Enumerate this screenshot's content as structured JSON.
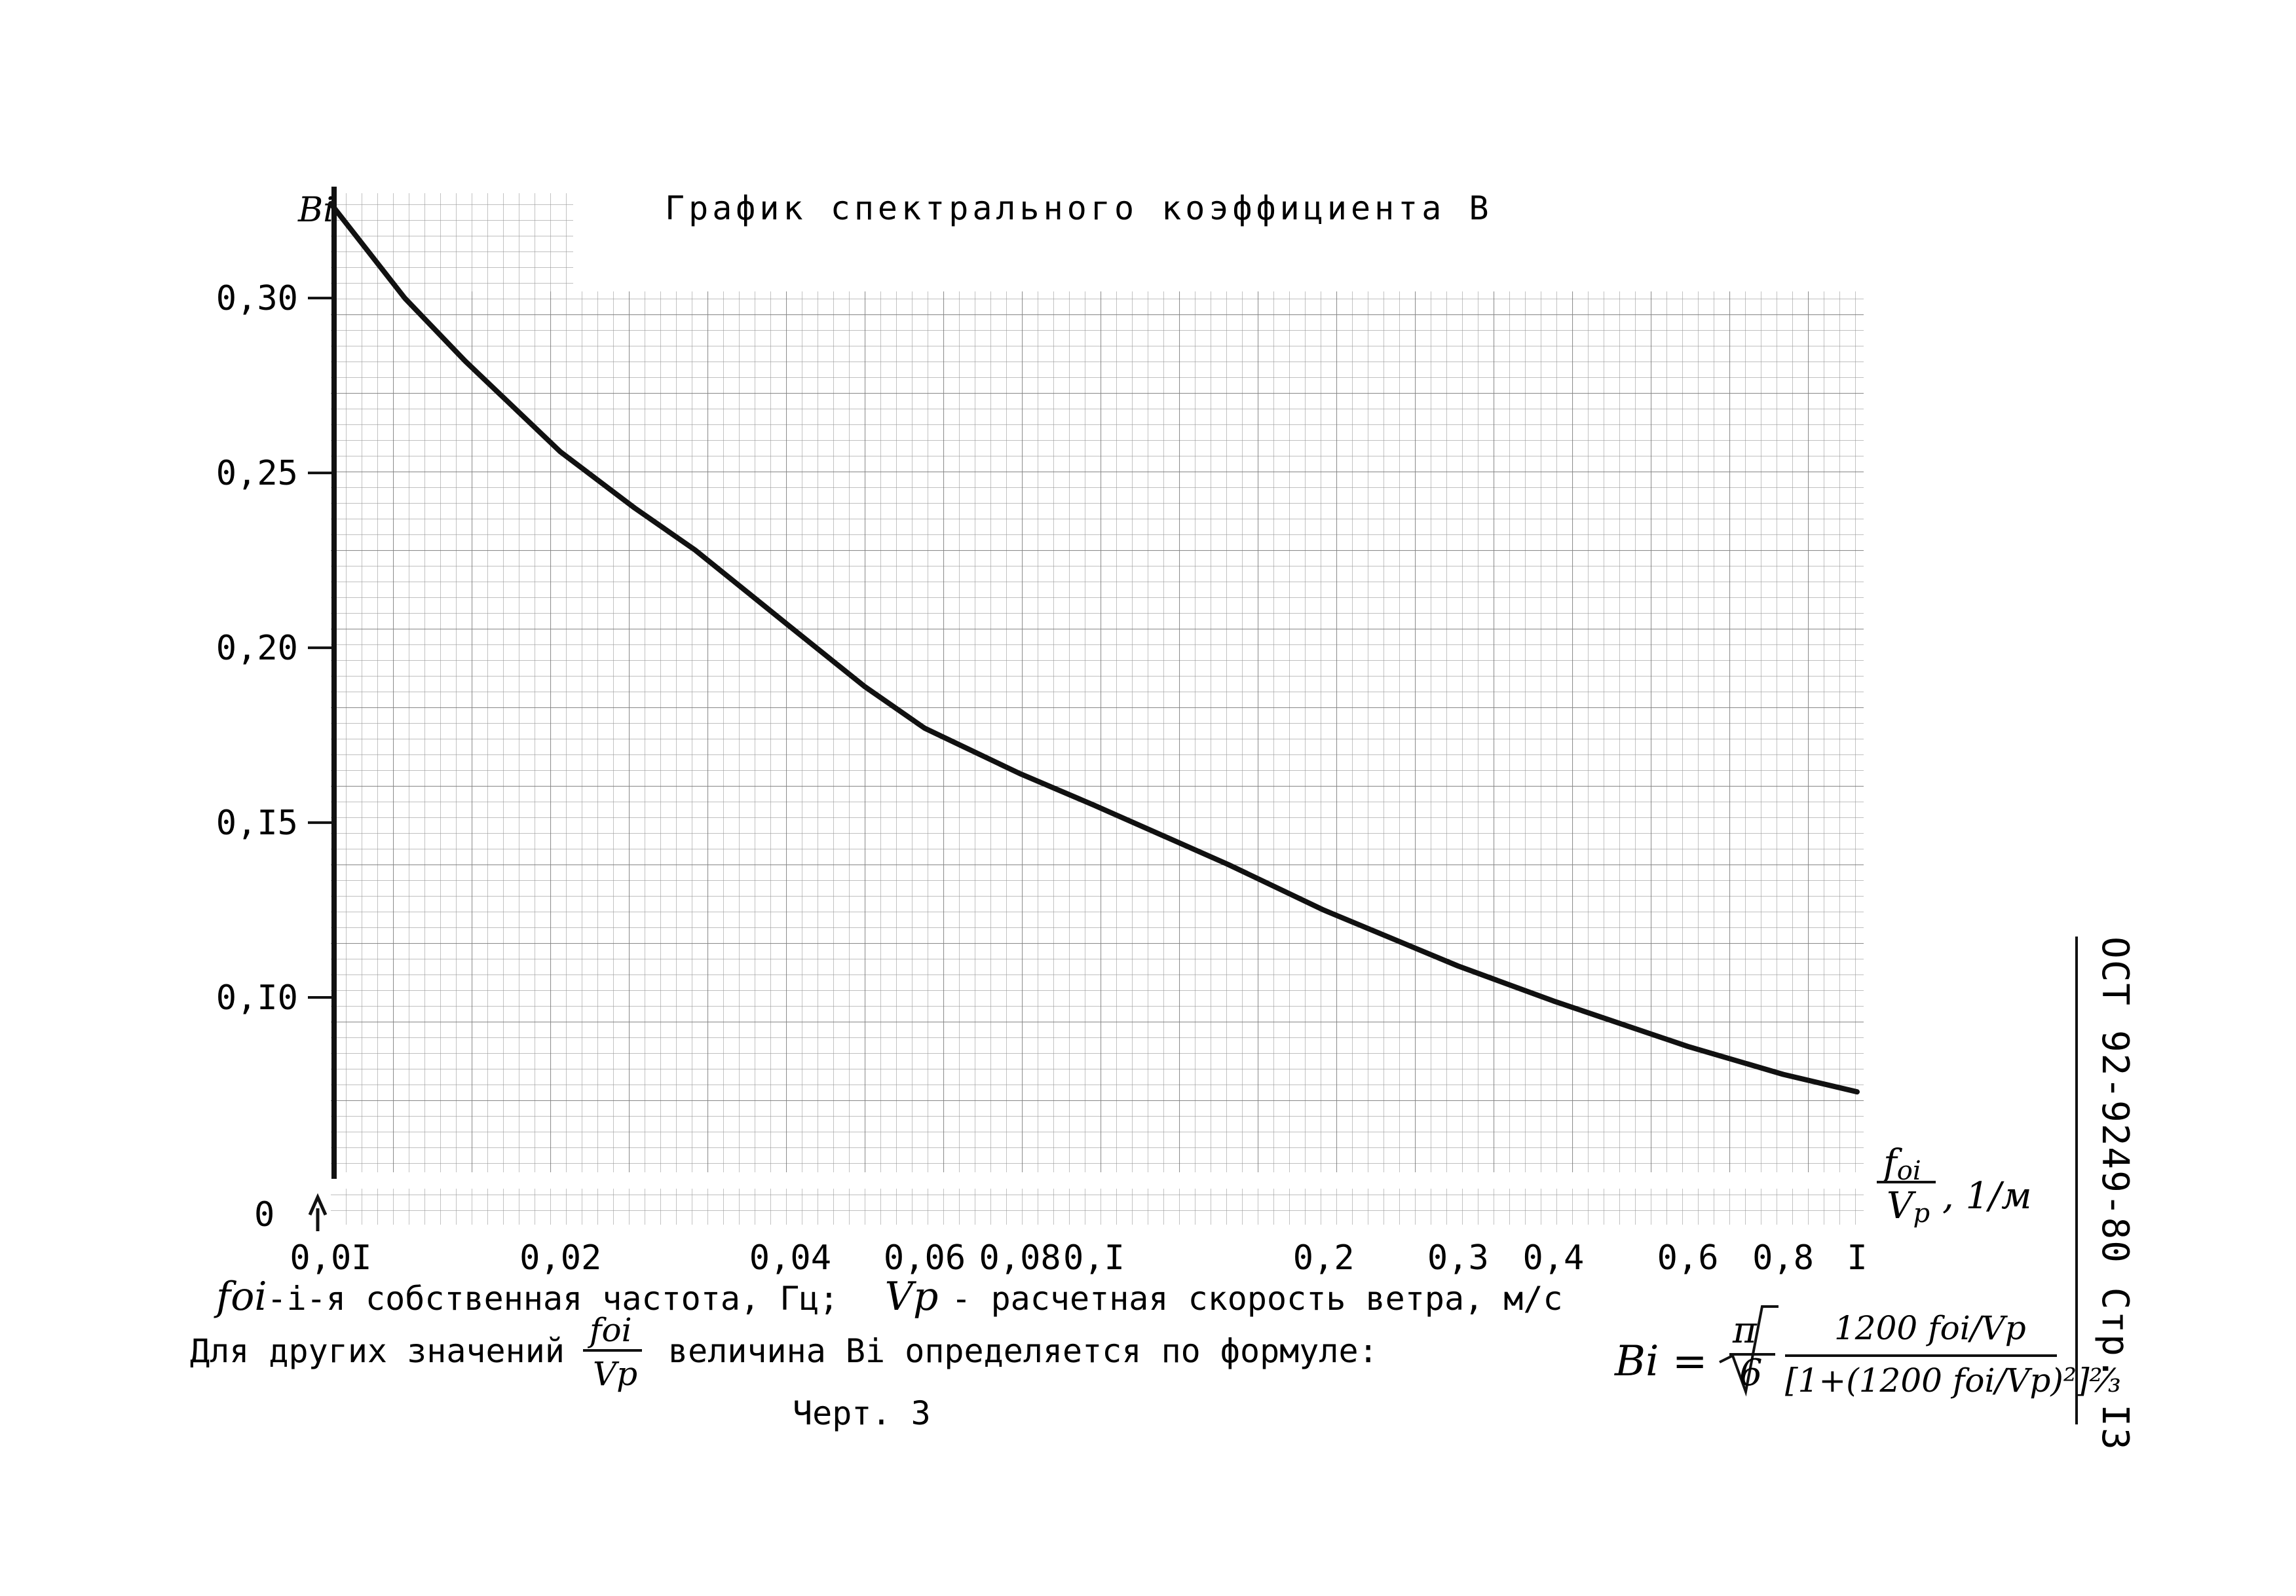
{
  "chart_data": {
    "type": "line",
    "title": "График спектрального коэффициента B",
    "x_scale": "log",
    "xlim": [
      0.01,
      1.0
    ],
    "ylim": [
      0.05,
      0.33
    ],
    "x_ticks": [
      {
        "value": 0.01,
        "label": "0,0I"
      },
      {
        "value": 0.02,
        "label": "0,02"
      },
      {
        "value": 0.04,
        "label": "0,04"
      },
      {
        "value": 0.06,
        "label": "0,06"
      },
      {
        "value": 0.08,
        "label": "0,08"
      },
      {
        "value": 0.1,
        "label": "0,I"
      },
      {
        "value": 0.2,
        "label": "0,2"
      },
      {
        "value": 0.3,
        "label": "0,3"
      },
      {
        "value": 0.4,
        "label": "0,4"
      },
      {
        "value": 0.6,
        "label": "0,6"
      },
      {
        "value": 0.8,
        "label": "0,8"
      },
      {
        "value": 1.0,
        "label": "I"
      }
    ],
    "y_ticks": [
      {
        "value": 0.3,
        "label": "0,30"
      },
      {
        "value": 0.25,
        "label": "0,25"
      },
      {
        "value": 0.2,
        "label": "0,20"
      },
      {
        "value": 0.15,
        "label": "0,I5"
      },
      {
        "value": 0.1,
        "label": "0,I0"
      }
    ],
    "y_zero_label": "0",
    "ylabel": "Bi",
    "xlabel": "foi/Vp, 1/м",
    "series": [
      {
        "x": [
          0.01,
          0.0125,
          0.015,
          0.02,
          0.025,
          0.03,
          0.04,
          0.05,
          0.06,
          0.08,
          0.1,
          0.15,
          0.2,
          0.3,
          0.4,
          0.6,
          0.8,
          1.0
        ],
        "y": [
          0.327,
          0.3,
          0.282,
          0.256,
          0.24,
          0.228,
          0.206,
          0.189,
          0.177,
          0.164,
          0.155,
          0.138,
          0.125,
          0.109,
          0.099,
          0.086,
          0.078,
          0.073
        ]
      }
    ],
    "grid": true,
    "color": "#111111"
  },
  "caption": {
    "line1_prefix": "foi",
    "line1_a": "-i-я собственная частота, Гц;",
    "line1_vp": "Vp",
    "line1_b": "- расчетная скорость ветра, м/с",
    "line2_a": "Для других значений",
    "line2_frac_num": "foi",
    "line2_frac_den": "Vp",
    "line2_b": "величина Bi определяется по формуле:",
    "figure": "Черт. 3"
  },
  "formula": {
    "lhs": "Bi =",
    "sqrt_num": "π",
    "sqrt_den": "6",
    "num": "1200 foi/Vp",
    "den": "[1+(1200 foi/Vp)²]⅔"
  },
  "side_stamp": "ОСТ 92-9249-80 Стр. I3"
}
